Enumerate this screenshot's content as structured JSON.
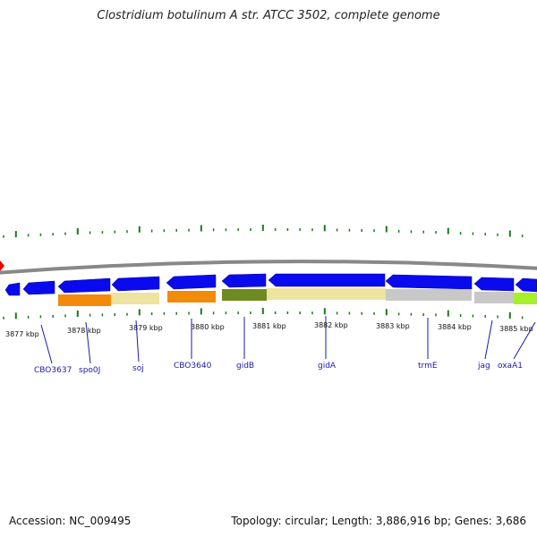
{
  "title": "Clostridium botulinum A str. ATCC 3502, complete genome",
  "footer": {
    "accession": "Accession: NC_009495",
    "summary": "Topology: circular; Length: 3,886,916 bp; Genes: 3,686"
  },
  "colors": {
    "backbone": "#888888",
    "gene_arrow": "#0a0aee",
    "tick": "#1a7a1a",
    "label": "#1a1aa8",
    "origin_marker": "#ee0000"
  },
  "kbp_labels": [
    "3877 kbp",
    "3878 kbp",
    "3879 kbp",
    "3880 kbp",
    "3881 kbp",
    "3882 kbp",
    "3883 kbp",
    "3884 kbp",
    "3885 kbp"
  ],
  "gene_labels": [
    "CBO3637",
    "spo0J",
    "soj",
    "CBO3640",
    "gidB",
    "gidA",
    "trmE",
    "jag",
    "oxaA1"
  ]
}
